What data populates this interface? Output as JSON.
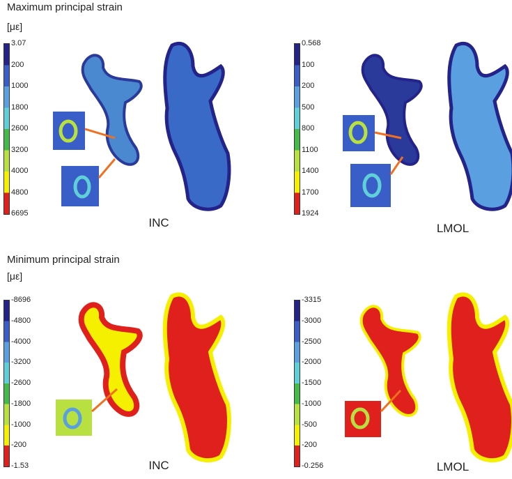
{
  "sections": [
    {
      "title": "Maximum principal strain",
      "unit": "[με]",
      "panels": [
        {
          "scale": [
            "3.07",
            "200",
            "1000",
            "1800",
            "2600",
            "3200",
            "4000",
            "4800",
            "6695"
          ],
          "label": "INC"
        },
        {
          "scale": [
            "0.568",
            "100",
            "200",
            "500",
            "800",
            "1100",
            "1400",
            "1700",
            "1924"
          ],
          "label": "LMOL"
        }
      ]
    },
    {
      "title": "Minimum principal strain",
      "unit": "[με]",
      "panels": [
        {
          "scale": [
            "-8696",
            "-4800",
            "-4000",
            "-3200",
            "-2600",
            "-1800",
            "-1000",
            "-200",
            "-1.53"
          ],
          "label": "INC"
        },
        {
          "scale": [
            "-3315",
            "-3000",
            "-2500",
            "-2000",
            "-1500",
            "-1000",
            "-500",
            "-200",
            "-0.256"
          ],
          "label": "LMOL"
        }
      ]
    }
  ]
}
